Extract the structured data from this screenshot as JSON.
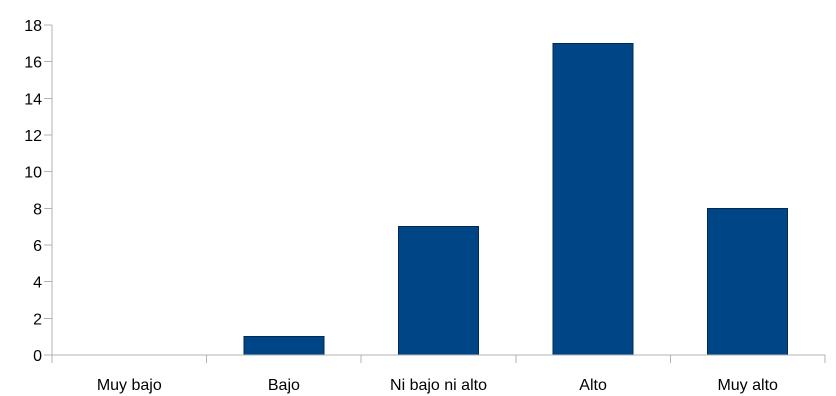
{
  "chart_data": {
    "type": "bar",
    "categories": [
      "Muy bajo",
      "Bajo",
      "Ni bajo ni alto",
      "Alto",
      "Muy alto"
    ],
    "values": [
      0,
      1,
      7,
      17,
      8
    ],
    "ylim": [
      0,
      18
    ],
    "y_ticks": [
      0,
      2,
      4,
      6,
      8,
      10,
      12,
      14,
      16,
      18
    ],
    "grid": false,
    "legend": "none",
    "bar_color": "#004586"
  }
}
